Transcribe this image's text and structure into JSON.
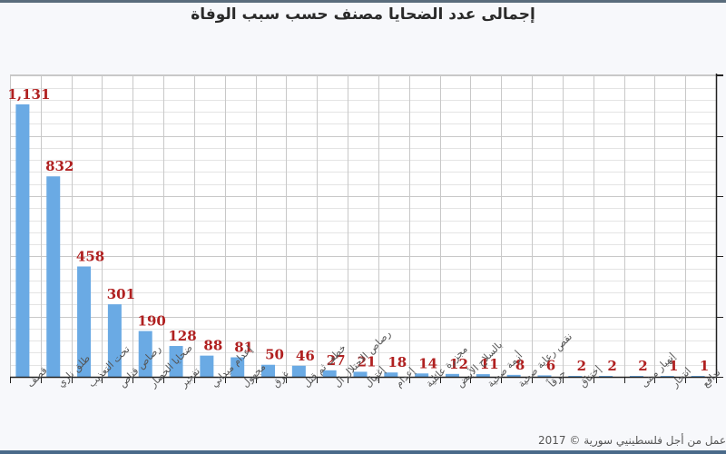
{
  "title": "إجمالى عدد الضحايا مصنف حسب سبب الوفاة",
  "footer": "عمل من أجل فلسطينيي سورية © 2017",
  "colors": {
    "bar": "#6aaae4",
    "label": "#b02020",
    "grid_major": "#c8c8c8",
    "grid_minor": "#e4e4e4",
    "axis": "#222222",
    "tick_label": "#555555"
  },
  "chart_data": {
    "type": "bar",
    "title": "إجمالى عدد الضحايا مصنف حسب سبب الوفاة",
    "xlabel": "",
    "ylabel": "",
    "ylim": [
      0,
      1255
    ],
    "y_axis_position": "right",
    "y_tick_labels_visible": false,
    "grid": true,
    "data_labels": true,
    "categories": [
      "قصف",
      "طلق ناري",
      "تحت التعذيب",
      "رصاص قناص",
      "ضحايا الحصار",
      "تفجير",
      "إعدام ميداني",
      "مجهول",
      "غرق",
      "خطف ثم قتل",
      "رصاص الاحتلال ال",
      "إغتيال",
      "إعدام",
      "مجزرة عائلية",
      "بالسلاح الأبيض",
      "أزمة صحية",
      "نقص رعاية صحية",
      "حرقاً",
      "إختناق",
      "",
      "إنهيار مبنى",
      "انتحار",
      "تدافع"
    ],
    "values": [
      1131,
      832,
      458,
      301,
      190,
      128,
      88,
      81,
      50,
      46,
      27,
      21,
      18,
      14,
      12,
      11,
      8,
      6,
      2,
      2,
      2,
      1,
      1
    ],
    "value_labels": [
      "1,131",
      "832",
      "458",
      "301",
      "190",
      "128",
      "88",
      "81",
      "50",
      "46",
      "27",
      "21",
      "18",
      "14",
      "12",
      "11",
      "8",
      "6",
      "2",
      "2",
      "2",
      "1",
      "1"
    ]
  }
}
